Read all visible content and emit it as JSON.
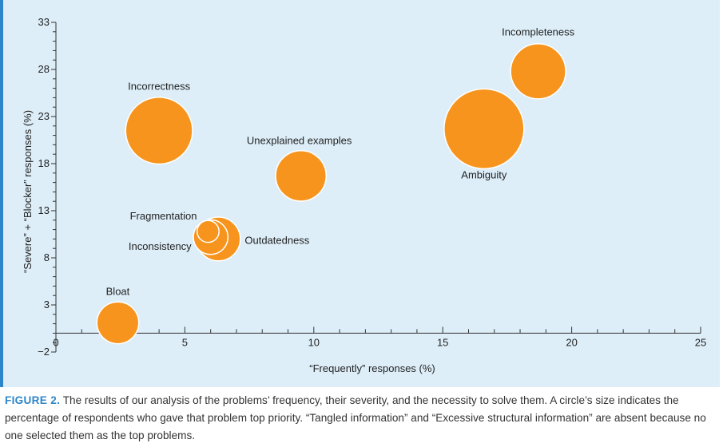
{
  "chart_data": {
    "type": "bubble",
    "xlabel": "“Frequently” responses (%)",
    "ylabel": "“Severe” + “Blocker” responses (%)",
    "xlim": [
      0,
      25
    ],
    "ylim": [
      -2,
      33
    ],
    "x_ticks": [
      0,
      5,
      10,
      15,
      20,
      25
    ],
    "y_ticks": [
      -2,
      3,
      8,
      13,
      18,
      23,
      28,
      33
    ],
    "grid": false,
    "bubble_color": "#f7941d",
    "points": [
      {
        "label": "Incompleteness",
        "x": 18.7,
        "y": 27.8,
        "size": 1.9
      },
      {
        "label": "Ambiguity",
        "x": 16.6,
        "y": 21.7,
        "size": 4.0
      },
      {
        "label": "Incorrectness",
        "x": 4.0,
        "y": 21.5,
        "size": 2.8
      },
      {
        "label": "Unexplained examples",
        "x": 9.5,
        "y": 16.7,
        "size": 1.6
      },
      {
        "label": "Outdatedness",
        "x": 6.3,
        "y": 10.0,
        "size": 1.2
      },
      {
        "label": "Inconsistency",
        "x": 6.0,
        "y": 10.2,
        "size": 0.75
      },
      {
        "label": "Fragmentation",
        "x": 5.9,
        "y": 10.8,
        "size": 0.3
      },
      {
        "label": "Bloat",
        "x": 2.4,
        "y": 1.1,
        "size": 1.1
      }
    ]
  },
  "caption": {
    "head": "FIGURE 2.",
    "text": "The results of our analysis of the problems’ frequency, their severity, and the necessity to solve them. A circle’s size indicates the percentage of respondents who gave that problem top priority. “Tangled information” and “Excessive structural information” are absent because no one selected them as the top problems."
  }
}
